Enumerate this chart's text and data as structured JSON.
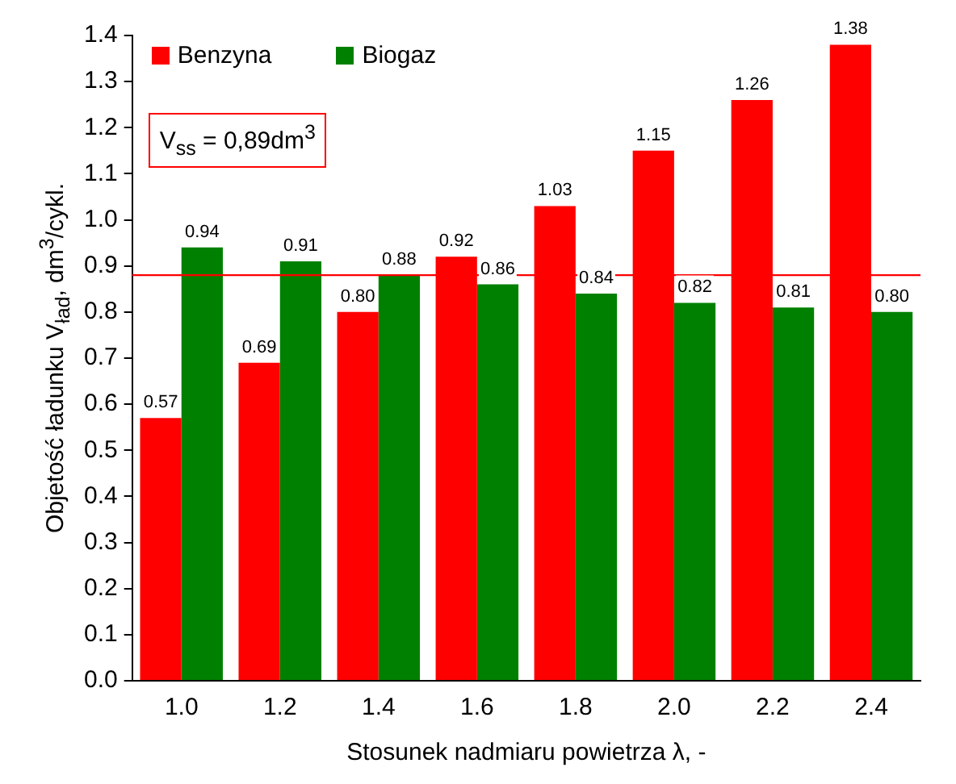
{
  "chart_data": {
    "type": "bar",
    "categories": [
      "1.0",
      "1.2",
      "1.4",
      "1.6",
      "1.8",
      "2.0",
      "2.2",
      "2.4"
    ],
    "series": [
      {
        "name": "Benzyna",
        "color": "#ff0000",
        "values": [
          0.57,
          0.69,
          0.8,
          0.92,
          1.03,
          1.15,
          1.26,
          1.38
        ],
        "value_labels": [
          "0.57",
          "0.69",
          "0.80",
          "0.92",
          "1.03",
          "1.15",
          "1.26",
          "1.38"
        ]
      },
      {
        "name": "Biogaz",
        "color": "#008000",
        "values": [
          0.94,
          0.91,
          0.88,
          0.86,
          0.84,
          0.82,
          0.81,
          0.8
        ],
        "value_labels": [
          "0.94",
          "0.91",
          "0.88",
          "0.86",
          "0.84",
          "0.82",
          "0.81",
          "0.80"
        ]
      }
    ],
    "xlabel": "Stosunek nadmiaru powietrza λ, -",
    "ylabel": "Objetość ładunku  V$_{ład}$, dm$^{3}$/cykl.",
    "ylim": [
      0,
      1.4
    ],
    "yticks": [
      {
        "value": 0,
        "label": "0.0"
      },
      0.1,
      0.2,
      0.3,
      0.4,
      0.5,
      0.6,
      0.7,
      0.8,
      0.9,
      {
        "value": 1,
        "label": "1.0"
      },
      1.1,
      1.2,
      1.3,
      1.4
    ],
    "ref_lines": [
      {
        "axis": "y",
        "value": 0.88,
        "color": "#ff0000"
      }
    ],
    "annotations": [
      "V$_{ss}$ = 0,89dm$^{3}$"
    ],
    "grid": false,
    "legend": "top left"
  }
}
